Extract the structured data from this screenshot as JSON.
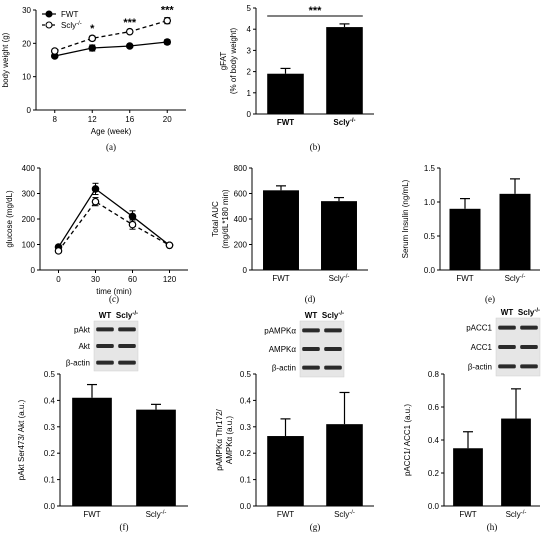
{
  "chart_data": [
    {
      "panel": "(a)",
      "type": "line",
      "xlabel": "Age  (week)",
      "ylabel": "body weight (g)",
      "x": [
        8,
        12,
        16,
        20
      ],
      "xticks": [
        "8",
        "12",
        "16",
        "20"
      ],
      "yticks": [
        "0",
        "10",
        "20",
        "30"
      ],
      "ylim": [
        0,
        30
      ],
      "series": [
        {
          "name": "FWT",
          "values": [
            16.2,
            18.6,
            19.2,
            20.4
          ],
          "errors": [
            0.5,
            0.9,
            0.4,
            0.7
          ],
          "marker": "filled",
          "line": "solid"
        },
        {
          "name": "Scly",
          "name_sup": "-/-",
          "values": [
            17.7,
            21.5,
            23.5,
            26.8
          ],
          "errors": [
            0.5,
            0.7,
            0.5,
            0.9
          ],
          "marker": "open",
          "line": "dashed"
        }
      ],
      "annotations": [
        "*",
        "***",
        "***"
      ]
    },
    {
      "panel": "(b)",
      "type": "bar",
      "ylabel": "gFAT",
      "ylabel2": "(% of body weight)",
      "categories": [
        "FWT",
        "Scly"
      ],
      "category_sups": [
        "",
        "-/-"
      ],
      "values": [
        1.9,
        4.1
      ],
      "errors": [
        0.25,
        0.15
      ],
      "yticks": [
        "0",
        "1",
        "2",
        "3",
        "4",
        "5"
      ],
      "ylim": [
        0,
        5
      ],
      "annotation": "***"
    },
    {
      "panel": "(c)",
      "type": "line",
      "xlabel": "time (min)",
      "ylabel": "glucose (mg/dL)",
      "x": [
        0,
        30,
        60,
        120
      ],
      "xticks": [
        "0",
        "30",
        "60",
        "120"
      ],
      "yticks": [
        "0",
        "100",
        "200",
        "300",
        "400"
      ],
      "ylim": [
        0,
        400
      ],
      "series": [
        {
          "values": [
            90,
            318,
            210,
            97
          ],
          "errors": [
            8,
            22,
            22,
            5
          ],
          "marker": "filled",
          "line": "solid"
        },
        {
          "values": [
            75,
            268,
            178,
            97
          ],
          "errors": [
            8,
            16,
            18,
            5
          ],
          "marker": "open",
          "line": "dashed"
        }
      ]
    },
    {
      "panel": "(d)",
      "type": "bar",
      "ylabel": "Total AUC",
      "ylabel2": "(mg/dL*180 min)",
      "categories": [
        "FWT",
        "Scly"
      ],
      "category_sups": [
        "",
        "-/-"
      ],
      "values": [
        625,
        540
      ],
      "errors": [
        35,
        28
      ],
      "yticks": [
        "0",
        "200",
        "400",
        "600",
        "800"
      ],
      "ylim": [
        0,
        800
      ]
    },
    {
      "panel": "(e)",
      "type": "bar",
      "ylabel": "Serum Insulin (ng/mL)",
      "categories": [
        "FWT",
        "Scly"
      ],
      "category_sups": [
        "",
        "-/-"
      ],
      "values": [
        0.9,
        1.12
      ],
      "errors": [
        0.15,
        0.22
      ],
      "yticks": [
        "0.0",
        "0.5",
        "1.0",
        "1.5"
      ],
      "ylim": [
        0,
        1.5
      ]
    },
    {
      "panel": "(f)",
      "type": "bar",
      "ylabel": "pAkt Ser473/ Akt (a.u.)",
      "categories": [
        "FWT",
        "Scly"
      ],
      "category_sups": [
        "",
        "-/-"
      ],
      "values": [
        0.41,
        0.365
      ],
      "errors": [
        0.05,
        0.02
      ],
      "yticks": [
        "0.0",
        "0.1",
        "0.2",
        "0.3",
        "0.4",
        "0.5"
      ],
      "ylim": [
        0,
        0.5
      ],
      "blot": {
        "columns": [
          "WT",
          "Scly"
        ],
        "column_sups": [
          "",
          "-/-"
        ],
        "rows": [
          "pAkt",
          "Akt",
          "β-actin"
        ]
      }
    },
    {
      "panel": "(g)",
      "type": "bar",
      "ylabel": "pAMPKα Thr172/",
      "ylabel2": "AMPKα (a.u.)",
      "categories": [
        "FWT",
        "Scly"
      ],
      "category_sups": [
        "",
        "-/-"
      ],
      "values": [
        0.265,
        0.31
      ],
      "errors": [
        0.065,
        0.12
      ],
      "yticks": [
        "0.0",
        "0.1",
        "0.2",
        "0.3",
        "0.4",
        "0.5"
      ],
      "ylim": [
        0,
        0.5
      ],
      "blot": {
        "columns": [
          "WT",
          "Scly"
        ],
        "column_sups": [
          "",
          "-/-"
        ],
        "rows": [
          "pAMPKα",
          "AMPKα",
          "β-actin"
        ]
      }
    },
    {
      "panel": "(h)",
      "type": "bar",
      "ylabel": "pACC1/ ACC1 (a.u.)",
      "categories": [
        "FWT",
        "Scly"
      ],
      "category_sups": [
        "",
        "-/-"
      ],
      "values": [
        0.35,
        0.53
      ],
      "errors": [
        0.1,
        0.18
      ],
      "yticks": [
        "0.0",
        "0.2",
        "0.4",
        "0.6",
        "0.8"
      ],
      "ylim": [
        0,
        0.8
      ],
      "blot": {
        "columns": [
          "WT",
          "Scly"
        ],
        "column_sups": [
          "",
          "-/-"
        ],
        "rows": [
          "pACC1",
          "ACC1",
          "β-actin"
        ]
      }
    }
  ]
}
